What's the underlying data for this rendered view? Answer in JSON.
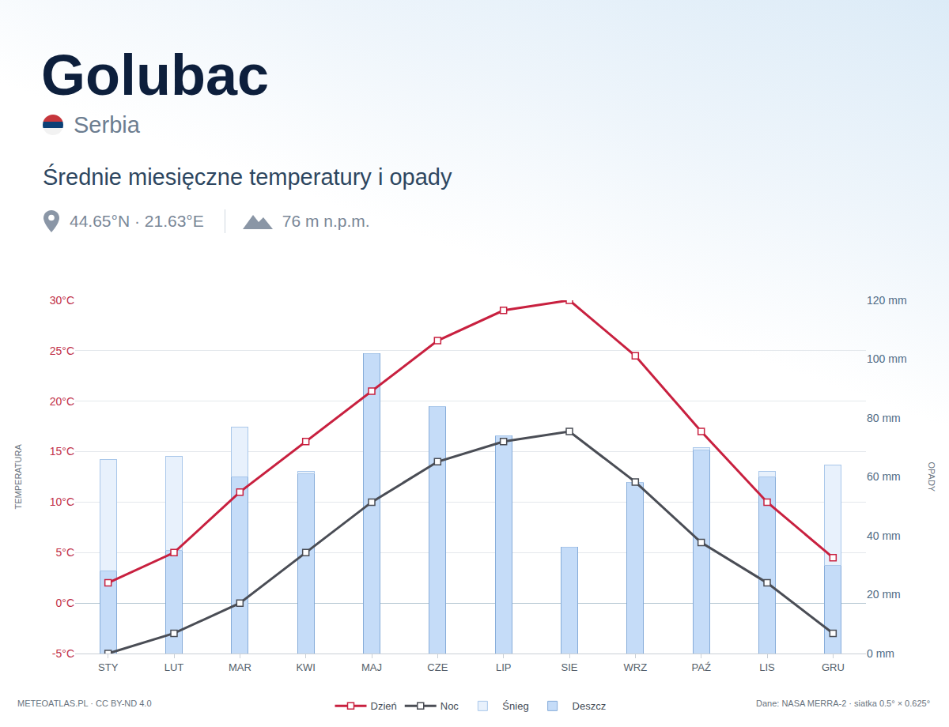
{
  "chart_data": {
    "type": "bar+line",
    "title": "Golubac",
    "subtitle": "Średnie miesięczne temperatury i opady",
    "annotations": {
      "country": "Serbia",
      "coordinates": "44.65°N · 21.63°E",
      "elevation": "76 m n.p.m.",
      "credit": "METEOATLAS.PL · CC BY-ND 4.0",
      "source": "Dane: NASA MERRA-2 · siatka 0.5° × 0.625°"
    },
    "ylabel": "TEMPERATURA",
    "y2label": "OPADY",
    "categories": [
      "STY",
      "LUT",
      "MAR",
      "KWI",
      "MAJ",
      "CZE",
      "LIP",
      "SIE",
      "WRZ",
      "PAŹ",
      "LIS",
      "GRU"
    ],
    "series": [
      {
        "name": "Dzień",
        "type": "line",
        "color": "#c8203f",
        "marker": "square",
        "values": [
          2,
          5,
          11,
          16,
          21,
          26,
          29,
          30,
          24.5,
          17,
          10,
          4.5
        ]
      },
      {
        "name": "Noc",
        "type": "line",
        "color": "#4a4d55",
        "marker": "square",
        "values": [
          -5,
          -3,
          0,
          5,
          10,
          14,
          16,
          17,
          12,
          6,
          2,
          -3
        ]
      },
      {
        "name": "Śnieg",
        "type": "bar",
        "axis": "y2",
        "color": "#e8f1fc",
        "values": [
          38,
          32,
          17,
          1,
          0,
          0,
          0,
          0,
          0,
          1,
          2,
          34
        ]
      },
      {
        "name": "Deszcz",
        "type": "bar",
        "axis": "y2",
        "color": "#c5dcf8",
        "values": [
          28,
          35,
          60,
          61,
          102,
          84,
          74,
          36,
          58,
          69,
          60,
          30
        ]
      }
    ],
    "stacked": true,
    "ylim": [
      -5,
      30
    ],
    "yticks": [
      {
        "value": -5,
        "label": "-5°C"
      },
      {
        "value": 0,
        "label": "0°C"
      },
      {
        "value": 5,
        "label": "5°C"
      },
      {
        "value": 10,
        "label": "10°C"
      },
      {
        "value": 15,
        "label": "15°C"
      },
      {
        "value": 20,
        "label": "20°C"
      },
      {
        "value": 25,
        "label": "25°C"
      },
      {
        "value": 30,
        "label": "30°C"
      }
    ],
    "y2lim": [
      0,
      120
    ],
    "y2ticks": [
      {
        "value": 0,
        "label": "0 mm"
      },
      {
        "value": 20,
        "label": "20 mm"
      },
      {
        "value": 40,
        "label": "40 mm"
      },
      {
        "value": 60,
        "label": "60 mm"
      },
      {
        "value": 80,
        "label": "80 mm"
      },
      {
        "value": 100,
        "label": "100 mm"
      },
      {
        "value": 120,
        "label": "120 mm"
      }
    ],
    "grid": true,
    "legend": "bottom"
  }
}
